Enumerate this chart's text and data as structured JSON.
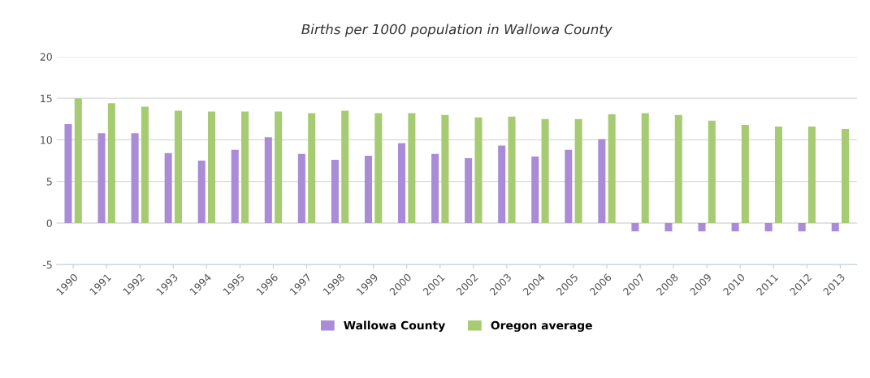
{
  "chart_data": {
    "type": "bar",
    "title": "Births per 1000 population in Wallowa County",
    "categories": [
      "1990",
      "1991",
      "1992",
      "1993",
      "1994",
      "1995",
      "1996",
      "1997",
      "1998",
      "1999",
      "2000",
      "2001",
      "2002",
      "2003",
      "2004",
      "2005",
      "2006",
      "2007",
      "2008",
      "2009",
      "2010",
      "2011",
      "2012",
      "2013"
    ],
    "series": [
      {
        "name": "Wallowa County",
        "color": "#a98bd8",
        "values": [
          11.9,
          10.8,
          10.8,
          8.4,
          7.5,
          8.8,
          10.3,
          8.3,
          7.6,
          8.1,
          9.6,
          8.3,
          7.8,
          9.3,
          8.0,
          8.8,
          10.1,
          -1.0,
          -1.0,
          -1.0,
          -1.0,
          -1.0,
          -1.0,
          -1.0
        ]
      },
      {
        "name": "Oregon average",
        "color": "#a6cb72",
        "values": [
          15.0,
          14.4,
          14.0,
          13.5,
          13.4,
          13.4,
          13.4,
          13.2,
          13.5,
          13.2,
          13.2,
          13.0,
          12.7,
          12.8,
          12.5,
          12.5,
          13.1,
          13.2,
          13.0,
          12.3,
          11.8,
          11.6,
          11.6,
          11.3
        ]
      }
    ],
    "ylim": [
      -5,
      20
    ],
    "yticks": [
      -5,
      0,
      5,
      10,
      15,
      20
    ],
    "grid": "y",
    "legend": "bottom"
  }
}
